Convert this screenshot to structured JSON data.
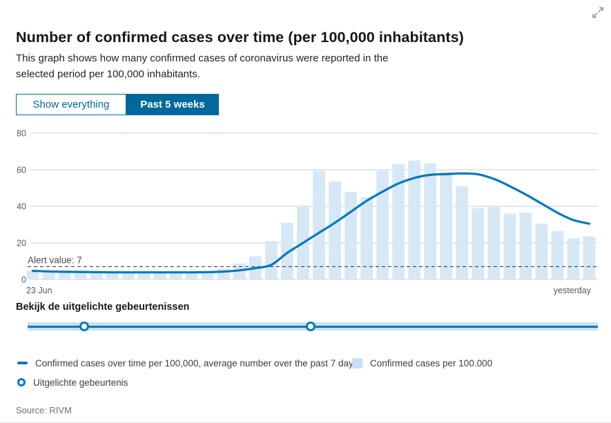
{
  "colors": {
    "accent": "#01689b",
    "line": "#0077c0",
    "bar": "#d6e8f6",
    "bar_strong": "#c7e0f4",
    "band": "#c9e0f2",
    "grid": "#cccccc",
    "alert_line": "#3f3f3f",
    "axis_text": "#595959"
  },
  "header": {
    "title": "Number of confirmed cases over time (per 100,000 inhabitants)",
    "description_lines": [
      "This graph shows how many confirmed cases of coronavirus were reported in the",
      "selected period per 100,000 inhabitants."
    ]
  },
  "tabs": [
    {
      "label": "Show everything",
      "active": false
    },
    {
      "label": "Past 5 weeks",
      "active": true
    }
  ],
  "chart_data": {
    "type": "bar",
    "series": [
      {
        "name": "Confirmed cases per 100.000",
        "type": "bar",
        "values": [
          4.8,
          4.4,
          4.2,
          4.0,
          4.4,
          3.8,
          4.0,
          4.2,
          3.8,
          4.4,
          4.2,
          4.0,
          6.0,
          8.8,
          12.6,
          21,
          31,
          40,
          59.5,
          53.5,
          48,
          45,
          59.5,
          63,
          65,
          63.5,
          59,
          51,
          39,
          39.5,
          36,
          36.5,
          30.5,
          26.5,
          22.5,
          23.5
        ]
      },
      {
        "name": "Confirmed cases over time per 100,000, average number over the past 7 days",
        "type": "line",
        "values": [
          4.7,
          4.4,
          4.2,
          4.1,
          4.0,
          3.9,
          3.9,
          3.9,
          3.9,
          3.9,
          3.9,
          4.0,
          4.3,
          5.0,
          6.2,
          8.0,
          14.5,
          20,
          25.5,
          31,
          37,
          43,
          48,
          52.5,
          55.5,
          57.2,
          57.6,
          58.0,
          57.5,
          55,
          51,
          46.5,
          41.5,
          36.5,
          32.5,
          30.5
        ]
      }
    ],
    "x_start_label": "23 Jun",
    "x_end_label": "yesterday",
    "y_ticks": [
      0,
      20,
      40,
      60,
      80
    ],
    "ylim": [
      0,
      80
    ],
    "alert": {
      "label": "Alert value: 7",
      "value": 7
    },
    "grid": true,
    "legend_position": "bottom"
  },
  "timeline": {
    "heading": "Bekijk de uitgelichte gebeurtenissen",
    "marker_positions_pct": [
      9.9,
      49.6
    ]
  },
  "legend": {
    "items": [
      {
        "type": "line",
        "label": "Confirmed cases over time per 100,000, average number over the past 7 days"
      },
      {
        "type": "square",
        "label": "Confirmed cases per 100.000"
      },
      {
        "type": "circle",
        "label": "Uitgelichte gebeurtenis"
      }
    ]
  },
  "footer": {
    "source": "Source: RIVM"
  }
}
